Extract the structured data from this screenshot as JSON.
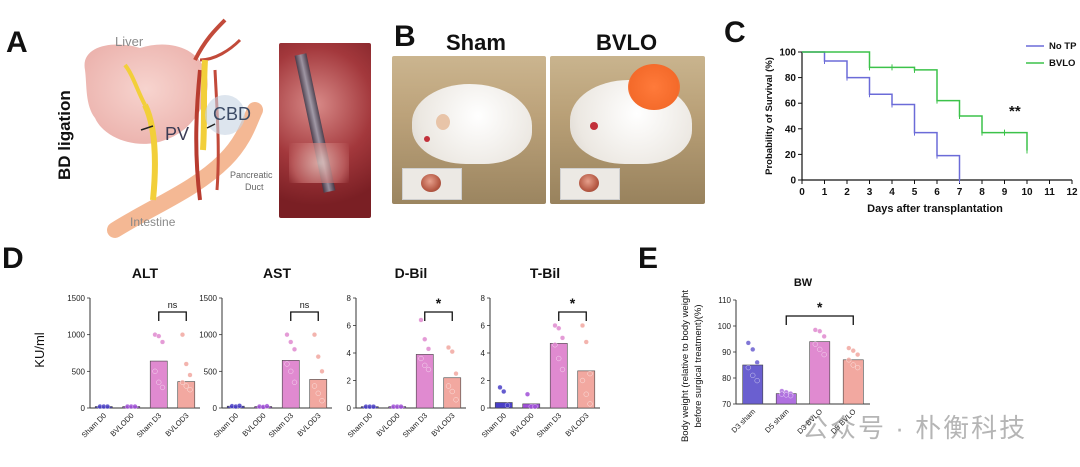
{
  "panels": {
    "A": {
      "letter": "A",
      "side_label": "BD ligation",
      "labels": {
        "liver": "Liver",
        "pv": "PV",
        "cbd": "CBD",
        "pancreatic_duct_1": "Pancreatic",
        "pancreatic_duct_2": "Duct",
        "intestine": "Intestine"
      }
    },
    "B": {
      "letter": "B",
      "label_left": "Sham",
      "label_right": "BVLO"
    },
    "C": {
      "letter": "C",
      "ylabel": "Probability of Survival (%)",
      "xlabel": "Days after transplantation",
      "significance": "**",
      "legend": [
        {
          "name": "No TP",
          "color": "#6b6bd8"
        },
        {
          "name": "BVLO",
          "color": "#3cc24a"
        }
      ]
    },
    "D": {
      "letter": "D",
      "ylabel": "KU/ml",
      "titles": [
        "ALT",
        "AST",
        "D-Bil",
        "T-Bil"
      ],
      "ns": "ns",
      "star": "*"
    },
    "E": {
      "letter": "E",
      "title": "BW",
      "ylabel_1": "Body weight (relative to body weight",
      "ylabel_2": "before surgical treatment)(%)",
      "star": "*"
    }
  },
  "watermark": "公众号 · 朴衡科技",
  "chart_data": [
    {
      "type": "line",
      "panel": "C",
      "xlabel": "Days after transplantation",
      "ylabel": "Probability of Survival (%)",
      "xlim": [
        0,
        12
      ],
      "ylim": [
        0,
        100
      ],
      "xticks": [
        0,
        1,
        2,
        3,
        4,
        5,
        6,
        7,
        8,
        9,
        10,
        11,
        12
      ],
      "yticks": [
        0,
        20,
        40,
        60,
        80,
        100
      ],
      "series": [
        {
          "name": "No TP",
          "color": "#6b6bd8",
          "step": true,
          "x": [
            0,
            1,
            2,
            3,
            4,
            5,
            6,
            7
          ],
          "y": [
            100,
            93,
            80,
            67,
            59,
            37,
            19,
            0
          ]
        },
        {
          "name": "BVLO",
          "color": "#3cc24a",
          "step": true,
          "x": [
            0,
            3,
            4,
            5,
            6,
            7,
            8,
            9,
            10
          ],
          "y": [
            100,
            88,
            88,
            86,
            62,
            50,
            37,
            37,
            23
          ]
        }
      ]
    },
    {
      "type": "bar",
      "panel": "D",
      "title": "ALT",
      "categories": [
        "Sham D0",
        "BVLOD0",
        "Sham D3",
        "BVLOD3"
      ],
      "values": [
        20,
        20,
        640,
        360
      ],
      "ylim": [
        0,
        1500
      ],
      "yticks": [
        0,
        500,
        1000,
        1500
      ],
      "points": [
        [
          20,
          20,
          20
        ],
        [
          20,
          20,
          20
        ],
        [
          1000,
          980,
          900,
          500,
          350,
          280
        ],
        [
          1000,
          600,
          450,
          350,
          300,
          250
        ]
      ],
      "colors": [
        "#4a3fc7",
        "#a050d8",
        "#e08ad0",
        "#f2a8a0"
      ],
      "annotation": {
        "text": "ns",
        "from": 2,
        "to": 3
      }
    },
    {
      "type": "bar",
      "panel": "D",
      "title": "AST",
      "categories": [
        "Sham D0",
        "BVLOD0",
        "Sham D3",
        "BVLOD3"
      ],
      "values": [
        25,
        20,
        650,
        390
      ],
      "ylim": [
        0,
        1500
      ],
      "yticks": [
        0,
        500,
        1000,
        1500
      ],
      "points": [
        [
          25,
          20,
          30
        ],
        [
          20,
          15,
          25
        ],
        [
          1000,
          900,
          800,
          600,
          500,
          350
        ],
        [
          1000,
          700,
          500,
          300,
          200,
          100
        ]
      ],
      "colors": [
        "#4a3fc7",
        "#a050d8",
        "#e08ad0",
        "#f2a8a0"
      ],
      "annotation": {
        "text": "ns",
        "from": 2,
        "to": 3
      }
    },
    {
      "type": "bar",
      "panel": "D",
      "title": "D-Bil",
      "categories": [
        "Sham D0",
        "BVLOD0",
        "Sham D3",
        "BVLOD3"
      ],
      "values": [
        0.1,
        0.1,
        3.9,
        2.2
      ],
      "ylim": [
        0,
        8
      ],
      "yticks": [
        0,
        2,
        4,
        6,
        8
      ],
      "points": [
        [
          0.1,
          0.1,
          0.1
        ],
        [
          0.1,
          0.1,
          0.1
        ],
        [
          6.4,
          5.0,
          4.3,
          3.6,
          3.1,
          2.8
        ],
        [
          4.4,
          4.1,
          2.5,
          1.6,
          1.2,
          0.6
        ]
      ],
      "colors": [
        "#4a3fc7",
        "#a050d8",
        "#e08ad0",
        "#f2a8a0"
      ],
      "annotation": {
        "text": "*",
        "from": 2,
        "to": 3
      }
    },
    {
      "type": "bar",
      "panel": "D",
      "title": "T-Bil",
      "categories": [
        "Sham D0",
        "BVLOD0",
        "Sham D3",
        "BVLOD3"
      ],
      "values": [
        0.4,
        0.3,
        4.7,
        2.7
      ],
      "ylim": [
        0,
        8
      ],
      "yticks": [
        0,
        2,
        4,
        6,
        8
      ],
      "points": [
        [
          1.5,
          1.2,
          0.2
        ],
        [
          1.0,
          0.1,
          0.1
        ],
        [
          6.0,
          5.8,
          5.1,
          4.6,
          3.6,
          2.8
        ],
        [
          6.0,
          4.8,
          2.5,
          2.0,
          1.0,
          0.3
        ]
      ],
      "colors": [
        "#4a3fc7",
        "#a050d8",
        "#e08ad0",
        "#f2a8a0"
      ],
      "annotation": {
        "text": "*",
        "from": 2,
        "to": 3
      }
    },
    {
      "type": "bar",
      "panel": "E",
      "title": "BW",
      "ylabel": "Body weight (relative to body weight before surgical treatment)(%)",
      "categories": [
        "D3 sham",
        "D5 sham",
        "D3 BVLO",
        "D5 BVLO"
      ],
      "values": [
        85,
        74,
        94,
        87
      ],
      "ylim": [
        70,
        110
      ],
      "yticks": [
        70,
        80,
        90,
        100,
        110
      ],
      "points": [
        [
          93.5,
          91,
          86,
          84,
          81,
          79
        ],
        [
          75,
          74.5,
          74,
          73.8,
          73.5,
          73.2
        ],
        [
          98.5,
          98,
          96,
          93,
          91,
          89
        ],
        [
          91.5,
          90.5,
          89,
          87,
          85,
          84
        ]
      ],
      "colors": [
        "#6a5fd0",
        "#b070e0",
        "#e08ad0",
        "#f2a8a0"
      ],
      "annotation": {
        "text": "*",
        "from": 1,
        "to": 3
      }
    }
  ]
}
